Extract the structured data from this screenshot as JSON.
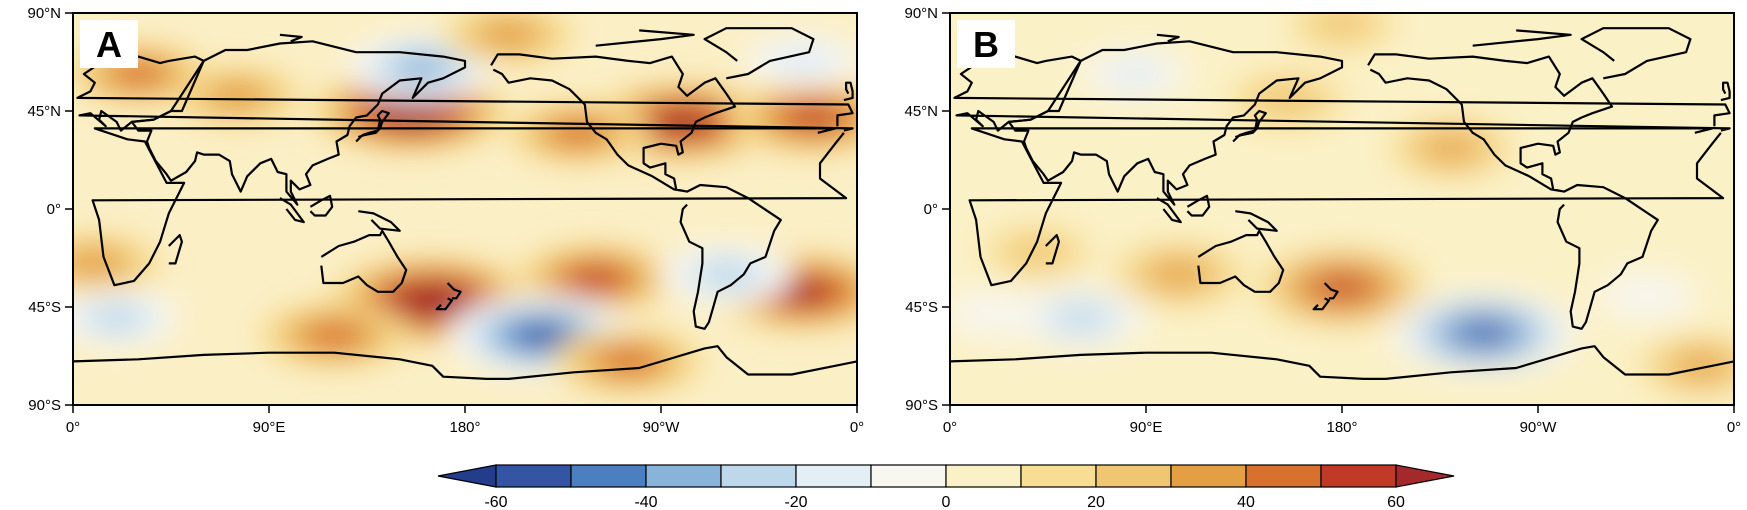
{
  "panels": [
    {
      "label": "A"
    },
    {
      "label": "B"
    }
  ],
  "lat_ticks": [
    "90°N",
    "45°N",
    "0°",
    "45°S",
    "90°S"
  ],
  "lon_ticks": [
    "0°",
    "90°E",
    "180°",
    "90°W",
    "0°"
  ],
  "colorbar": {
    "tick_labels": [
      "-60",
      "-40",
      "-20",
      "0",
      "20",
      "40",
      "60"
    ],
    "colors": [
      "#233d8c",
      "#3454a4",
      "#4b7fc0",
      "#8ab3d9",
      "#bdd8ea",
      "#e3eef5",
      "#f8f6f0",
      "#fbf1c7",
      "#f8de95",
      "#f0c672",
      "#e49f45",
      "#d8702e",
      "#c03a27",
      "#a3292a"
    ]
  },
  "fields": {
    "A": {
      "background": "#fbefc6",
      "features": [
        {
          "lon": 155,
          "lat": 45,
          "value": 65
        },
        {
          "lon": 75,
          "lat": 52,
          "value": 30
        },
        {
          "lon": 30,
          "lat": 62,
          "value": 35
        },
        {
          "lon": 280,
          "lat": 40,
          "value": 60
        },
        {
          "lon": 340,
          "lat": 42,
          "value": 50
        },
        {
          "lon": 232,
          "lat": 35,
          "value": 35
        },
        {
          "lon": 165,
          "lat": -42,
          "value": 70
        },
        {
          "lon": 120,
          "lat": -58,
          "value": 40
        },
        {
          "lon": 240,
          "lat": -32,
          "value": 45
        },
        {
          "lon": 335,
          "lat": -38,
          "value": 55
        },
        {
          "lon": 10,
          "lat": -25,
          "value": 30
        },
        {
          "lon": 215,
          "lat": -58,
          "value": -60
        },
        {
          "lon": 160,
          "lat": 65,
          "value": -40
        },
        {
          "lon": 300,
          "lat": -30,
          "value": -30
        },
        {
          "lon": 20,
          "lat": -50,
          "value": -25
        },
        {
          "lon": 255,
          "lat": -70,
          "value": 40
        },
        {
          "lon": 200,
          "lat": 80,
          "value": 30
        },
        {
          "lon": 335,
          "lat": 68,
          "value": -20
        }
      ]
    },
    "B": {
      "background": "#fbf1c7",
      "features": [
        {
          "lon": 180,
          "lat": -36,
          "value": 50
        },
        {
          "lon": 105,
          "lat": -30,
          "value": 30
        },
        {
          "lon": 245,
          "lat": -57,
          "value": -60
        },
        {
          "lon": 60,
          "lat": -50,
          "value": -30
        },
        {
          "lon": 20,
          "lat": -48,
          "value": -10
        },
        {
          "lon": 320,
          "lat": -40,
          "value": -10
        },
        {
          "lon": 230,
          "lat": 28,
          "value": 25
        },
        {
          "lon": 155,
          "lat": 50,
          "value": 20
        },
        {
          "lon": 85,
          "lat": 62,
          "value": -15
        },
        {
          "lon": 345,
          "lat": -72,
          "value": 25
        },
        {
          "lon": 180,
          "lat": 85,
          "value": 15
        },
        {
          "lon": 40,
          "lat": -20,
          "value": 15
        }
      ]
    }
  }
}
